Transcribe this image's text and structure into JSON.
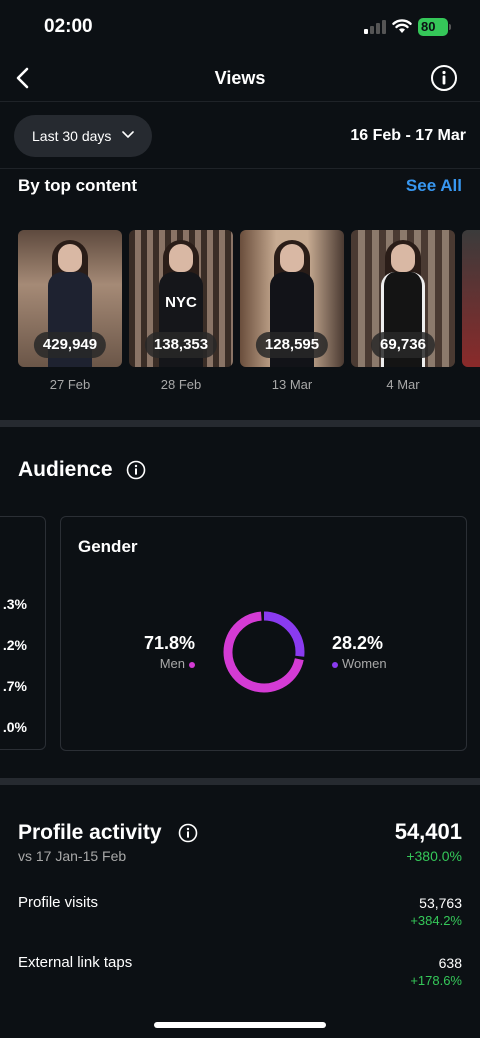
{
  "status_bar": {
    "time": "02:00",
    "battery": "80"
  },
  "nav": {
    "title": "Views"
  },
  "date_range": {
    "filter_label": "Last 30 days",
    "dates": "16 Feb - 17 Mar"
  },
  "top_content": {
    "title": "By top content",
    "see_all": "See All",
    "items": [
      {
        "views": "429,949",
        "date": "27 Feb"
      },
      {
        "views": "138,353",
        "date": "28 Feb",
        "shirt_text": "NYC"
      },
      {
        "views": "128,595",
        "date": "13 Mar"
      },
      {
        "views": "69,736",
        "date": "4 Mar"
      }
    ]
  },
  "audience": {
    "title": "Audience",
    "age_percentages": [
      ".3%",
      ".2%",
      ".7%",
      ".0%"
    ],
    "gender": {
      "title": "Gender",
      "men_pct": "71.8%",
      "men_label": "Men",
      "women_pct": "28.2%",
      "women_label": "Women",
      "men_fraction": 0.718,
      "women_fraction": 0.282,
      "men_color": "#d43bd4",
      "women_color": "#8a3bf0"
    }
  },
  "profile_activity": {
    "title": "Profile activity",
    "total": "54,401",
    "compare_period": "vs 17 Jan-15 Feb",
    "change": "+380.0%",
    "metrics": [
      {
        "label": "Profile visits",
        "value": "53,763",
        "change": "+384.2%"
      },
      {
        "label": "External link taps",
        "value": "638",
        "change": "+178.6%"
      }
    ]
  },
  "colors": {
    "background": "#0c1014",
    "accent_blue": "#3897f0",
    "positive_green": "#35c759"
  }
}
